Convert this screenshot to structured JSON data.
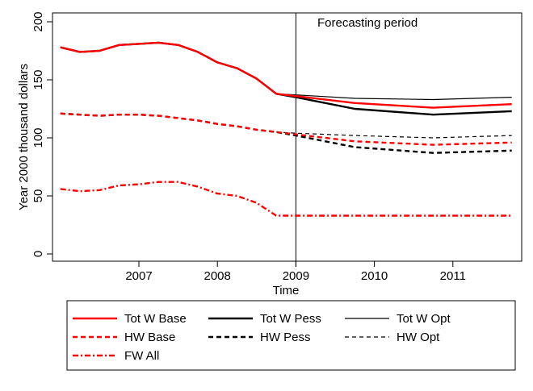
{
  "chart_data": {
    "type": "line",
    "title": "",
    "xlabel": "Time",
    "ylabel": "Year 2000 thousand dollars",
    "xlim": [
      2005.95,
      2011.85
    ],
    "ylim": [
      -8,
      207
    ],
    "xticks": [
      2007,
      2008,
      2009,
      2010,
      2011
    ],
    "xtick_labels": [
      "2007",
      "2008",
      "2009",
      "2010",
      "2011"
    ],
    "yticks": [
      0,
      50,
      100,
      150,
      200
    ],
    "ytick_labels": [
      "0",
      "50",
      "100",
      "150",
      "200"
    ],
    "grid": false,
    "annotation": {
      "text": "Forecasting period",
      "x": 2009.3,
      "y": 198
    },
    "vline": 2009,
    "legend": {
      "placement": "bottom",
      "columns": 3
    },
    "series": [
      {
        "name": "Tot W Base",
        "color": "#ff0000",
        "style": "solid",
        "weight": "thick",
        "x": [
          2006.0,
          2006.25,
          2006.5,
          2006.75,
          2007.0,
          2007.25,
          2007.5,
          2007.75,
          2008.0,
          2008.25,
          2008.5,
          2008.75,
          2009.0,
          2009.75,
          2010.75,
          2011.75
        ],
        "y": [
          178,
          174,
          175,
          180,
          181,
          182,
          180,
          174,
          165,
          160,
          151,
          138,
          136,
          130,
          126,
          129
        ]
      },
      {
        "name": "Tot W Pess",
        "color": "#000000",
        "style": "solid",
        "weight": "thick",
        "x": [
          2006.0,
          2006.25,
          2006.5,
          2006.75,
          2007.0,
          2007.25,
          2007.5,
          2007.75,
          2008.0,
          2008.25,
          2008.5,
          2008.75,
          2009.0,
          2009.75,
          2010.75,
          2011.75
        ],
        "y": [
          178,
          174,
          175,
          180,
          181,
          182,
          180,
          174,
          165,
          160,
          151,
          138,
          135,
          125,
          120,
          123
        ]
      },
      {
        "name": "Tot W Opt",
        "color": "#000000",
        "style": "solid",
        "weight": "thin",
        "x": [
          2008.75,
          2009.0,
          2009.75,
          2010.75,
          2011.75
        ],
        "y": [
          138,
          137,
          134,
          133,
          135
        ]
      },
      {
        "name": "HW Base",
        "color": "#ff0000",
        "style": "dashed",
        "weight": "thick",
        "x": [
          2006.0,
          2006.25,
          2006.5,
          2006.75,
          2007.0,
          2007.25,
          2007.5,
          2007.75,
          2008.0,
          2008.25,
          2008.5,
          2008.75,
          2009.0,
          2009.75,
          2010.75,
          2011.75
        ],
        "y": [
          121,
          120,
          119,
          120,
          120,
          119,
          117,
          115,
          112,
          110,
          107,
          105,
          103,
          97,
          94,
          96
        ]
      },
      {
        "name": "HW Pess",
        "color": "#000000",
        "style": "dashed",
        "weight": "thick",
        "x": [
          2006.0,
          2006.25,
          2006.5,
          2006.75,
          2007.0,
          2007.25,
          2007.5,
          2007.75,
          2008.0,
          2008.25,
          2008.5,
          2008.75,
          2009.0,
          2009.75,
          2010.75,
          2011.75
        ],
        "y": [
          121,
          120,
          119,
          120,
          120,
          119,
          117,
          115,
          112,
          110,
          107,
          105,
          102,
          92,
          87,
          89
        ]
      },
      {
        "name": "HW Opt",
        "color": "#000000",
        "style": "dashed",
        "weight": "thin",
        "x": [
          2008.75,
          2009.0,
          2009.75,
          2010.75,
          2011.75
        ],
        "y": [
          105,
          104,
          102,
          100,
          102
        ]
      },
      {
        "name": "FW All",
        "color": "#ff0000",
        "style": "dashdot",
        "weight": "thick",
        "x": [
          2006.0,
          2006.25,
          2006.5,
          2006.75,
          2007.0,
          2007.25,
          2007.5,
          2007.75,
          2008.0,
          2008.25,
          2008.5,
          2008.75,
          2009.0,
          2009.75,
          2010.75,
          2011.75
        ],
        "y": [
          56,
          54,
          55,
          59,
          60,
          62,
          62,
          58,
          52,
          50,
          44,
          33,
          33,
          33,
          33,
          33
        ]
      }
    ]
  }
}
